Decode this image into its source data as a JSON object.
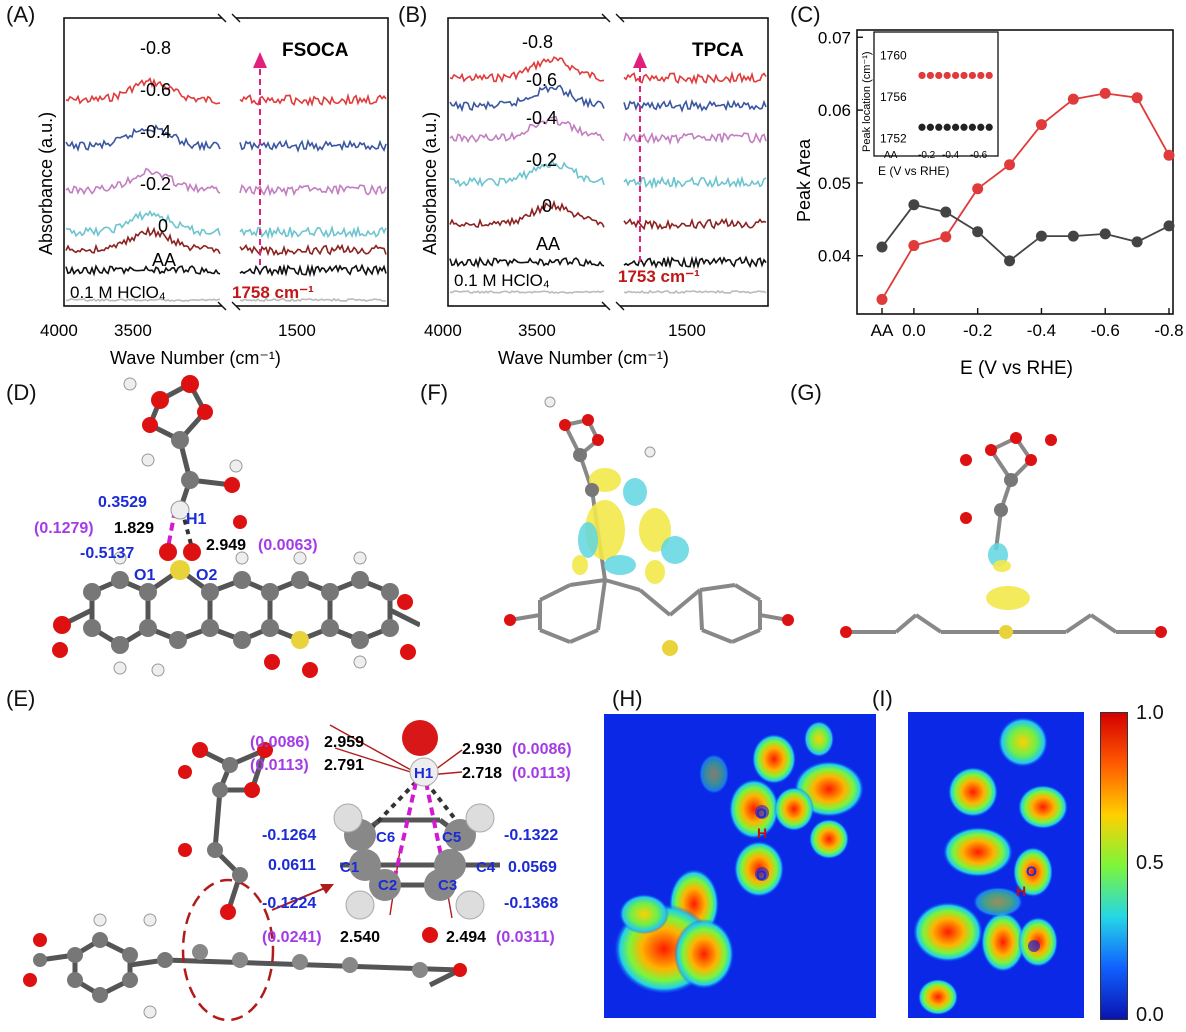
{
  "panels": {
    "A": "(A)",
    "B": "(B)",
    "C": "(C)",
    "D": "(D)",
    "E": "(E)",
    "F": "(F)",
    "G": "(G)",
    "H": "(H)",
    "I": "(I)"
  },
  "ftir_A": {
    "name": "FSOCA",
    "peak_label": "1758 cm⁻¹",
    "ylabel": "Absorbance (a.u.)",
    "xlabel": "Wave Number (cm⁻¹)",
    "x_ticks": [
      "4000",
      "3500",
      "1500"
    ],
    "traces": [
      "-0.8",
      "-0.6",
      "-0.4",
      "-0.2",
      "0",
      "AA",
      "0.1 M HClO₄"
    ]
  },
  "ftir_B": {
    "name": "TPCA",
    "peak_label": "1753 cm⁻¹",
    "ylabel": "Absorbance (a.u.)",
    "xlabel": "Wave Number (cm⁻¹)",
    "x_ticks": [
      "4000",
      "3500",
      "1500"
    ],
    "traces": [
      "-0.8",
      "-0.6",
      "-0.4",
      "-0.2",
      "0",
      "AA",
      "0.1 M HClO₄"
    ]
  },
  "trace_colors": [
    "#e03a3a",
    "#3a56a0",
    "#c27ec0",
    "#6cc4cf",
    "#8b2121",
    "#111111",
    "#bbbbbb"
  ],
  "chart_data": [
    {
      "type": "line",
      "title": "",
      "xlabel": "E (V vs RHE)",
      "ylabel": "Peak Area",
      "categories": [
        "AA",
        "0.0",
        "-0.1",
        "-0.2",
        "-0.3",
        "-0.4",
        "-0.5",
        "-0.6",
        "-0.7",
        "-0.8"
      ],
      "x_tick_labels": [
        "AA",
        "0.0",
        "-0.2",
        "-0.4",
        "-0.6",
        "-0.8"
      ],
      "ylim": [
        0.032,
        0.071
      ],
      "y_ticks": [
        "0.04",
        "0.05",
        "0.06",
        "0.07"
      ],
      "series": [
        {
          "color": "#e03a3a",
          "values": [
            0.034,
            0.0414,
            0.0426,
            0.0492,
            0.0525,
            0.058,
            0.0615,
            0.0623,
            0.0617,
            0.0538
          ]
        },
        {
          "color": "#444444",
          "values": [
            0.0412,
            0.047,
            0.046,
            0.0433,
            0.0393,
            0.0427,
            0.0427,
            0.043,
            0.0419,
            0.0441
          ]
        }
      ]
    },
    {
      "type": "scatter",
      "title": "",
      "xlabel": "E (V vs RHE)",
      "ylabel": "Peak location (cm⁻¹)",
      "x_tick_labels": [
        "AA",
        "-0.2",
        "-0.4",
        "-0.6"
      ],
      "y_ticks": [
        "1752",
        "1756",
        "1760"
      ],
      "ylim": [
        1751,
        1762
      ],
      "series": [
        {
          "color": "#e03a3a",
          "values": [
            1758,
            1758,
            1758,
            1758,
            1758,
            1758,
            1758,
            1758,
            1758
          ]
        },
        {
          "color": "#222222",
          "values": [
            1753,
            1753,
            1753,
            1753,
            1753,
            1753,
            1753,
            1753,
            1753
          ]
        }
      ]
    }
  ],
  "struct_D": {
    "q_top": "0.3529",
    "bond1_purple": "(0.1279)",
    "bond1": "1.829",
    "h1": "H1",
    "bond2": "2.949",
    "bond2_purple": "(0.0063)",
    "q_o1": "-0.5137",
    "o1": "O1",
    "o2": "O2"
  },
  "struct_E": {
    "l1_purple": "(0.0086)",
    "l1": "2.959",
    "l2_purple": "(0.0113)",
    "l2": "2.791",
    "r1": "2.930",
    "r1_purple": "(0.0086)",
    "r2": "2.718",
    "r2_purple": "(0.0113)",
    "h1": "H1",
    "c1": "C1",
    "c2": "C2",
    "c3": "C3",
    "c4": "C4",
    "c5": "C5",
    "c6": "C6",
    "q_c6": "-0.1264",
    "q_c1": "0.0611",
    "q_c2": "-0.1224",
    "q_c5": "-0.1322",
    "q_c4": "0.0569",
    "q_c3": "-0.1368",
    "b_left_purple": "(0.0241)",
    "b_left": "2.540",
    "b_right": "2.494",
    "b_right_purple": "(0.0311)"
  },
  "colorbar": {
    "max": "1.0",
    "mid": "0.5",
    "min": "0.0"
  },
  "map_labels": {
    "O": "O",
    "H": "H"
  }
}
